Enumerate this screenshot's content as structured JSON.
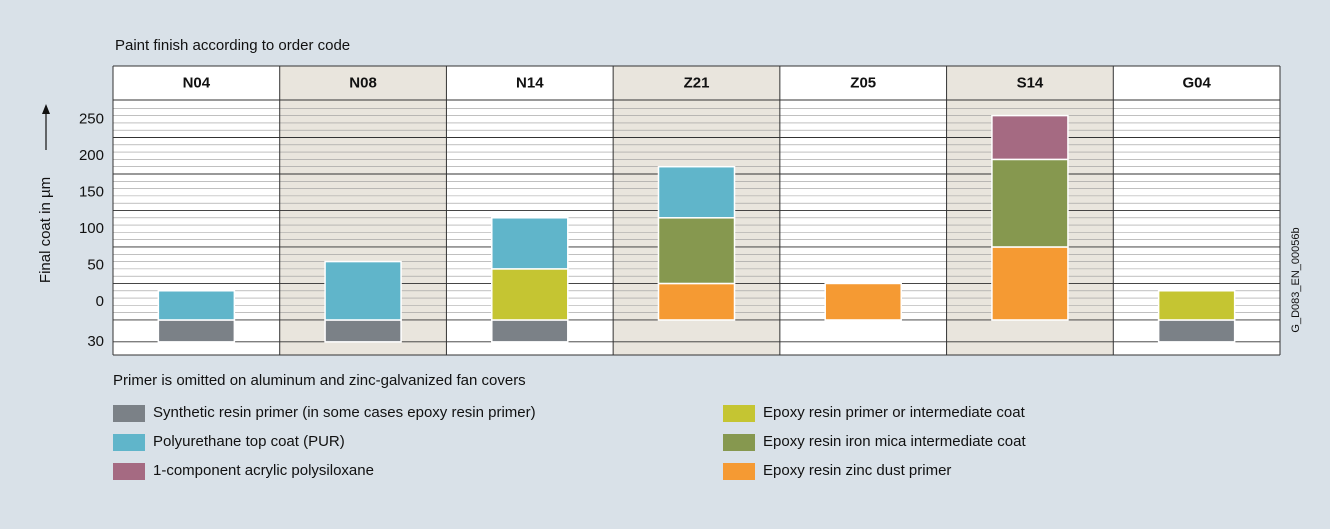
{
  "chart_data": {
    "type": "bar",
    "title": "Paint finish according to order code",
    "y_label": "Final coat in µm",
    "note": "Primer is omitted on aluminum and zinc-galvanized fan covers",
    "figure_id": "G_D083_EN_00056b",
    "categories": [
      "N04",
      "N08",
      "N14",
      "Z21",
      "Z05",
      "S14",
      "G04"
    ],
    "stacked": true,
    "series": [
      {
        "name": "Synthetic resin primer (in some cases epoxy resin primer)",
        "color": "#7b8187",
        "values": [
          -30,
          -30,
          -30,
          null,
          null,
          null,
          -30
        ]
      },
      {
        "name": "Epoxy resin zinc dust primer",
        "color": "#f59a33",
        "values": [
          null,
          null,
          null,
          50,
          50,
          100,
          null
        ]
      },
      {
        "name": "Epoxy resin primer or intermediate coat",
        "color": "#c5c532",
        "values": [
          null,
          null,
          70,
          null,
          null,
          null,
          40
        ]
      },
      {
        "name": "Epoxy resin iron mica intermediate coat",
        "color": "#86984f",
        "values": [
          null,
          null,
          null,
          90,
          null,
          120,
          null
        ]
      },
      {
        "name": "Polyurethane top coat (PUR)",
        "color": "#60b5ca",
        "values": [
          40,
          80,
          70,
          70,
          null,
          null,
          null
        ]
      },
      {
        "name": "1-component acrylic polysiloxane",
        "color": "#a56a82",
        "values": [
          null,
          null,
          null,
          null,
          null,
          60,
          null
        ]
      }
    ],
    "ylim": [
      -48,
      300
    ],
    "yticks": [
      {
        "value": -30,
        "label": "30"
      },
      0,
      50,
      100,
      150,
      200,
      250
    ],
    "grid": true
  }
}
